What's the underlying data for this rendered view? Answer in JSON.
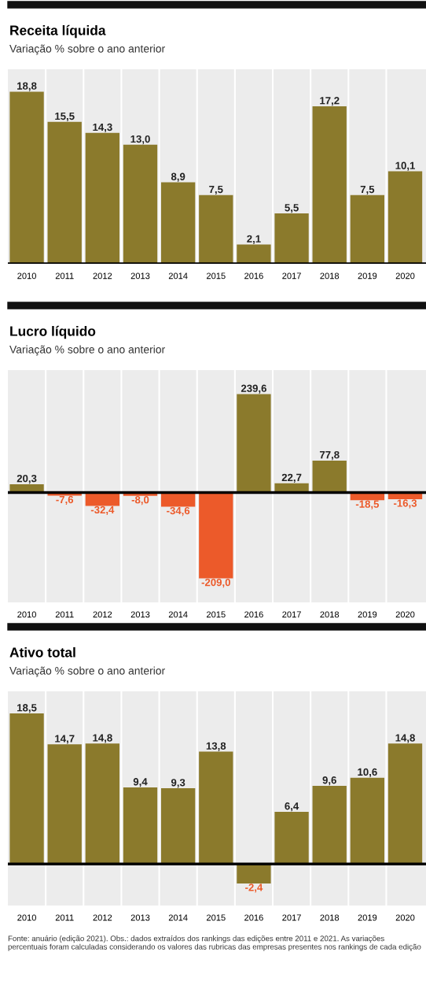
{
  "chart_data": [
    {
      "type": "bar",
      "title": "Receita líquida",
      "subtitle": "Variação % sobre o ano anterior",
      "categories": [
        "2010",
        "2011",
        "2012",
        "2013",
        "2014",
        "2015",
        "2016",
        "2017",
        "2018",
        "2019",
        "2020"
      ],
      "values": [
        18.8,
        15.5,
        14.3,
        13.0,
        8.9,
        7.5,
        2.1,
        5.5,
        17.2,
        7.5,
        10.1
      ],
      "value_labels": [
        "18,8",
        "15,5",
        "14,3",
        "13,0",
        "8,9",
        "7,5",
        "2,1",
        "5,5",
        "17,2",
        "7,5",
        "10,1"
      ],
      "color": "#8b7a2c"
    },
    {
      "type": "bar",
      "title": "Lucro líquido",
      "subtitle": "Variação % sobre o ano anterior",
      "categories": [
        "2010",
        "2011",
        "2012",
        "2013",
        "2014",
        "2015",
        "2016",
        "2017",
        "2018",
        "2019",
        "2020"
      ],
      "values": [
        20.3,
        -7.6,
        -32.4,
        -8.0,
        -34.6,
        -209.0,
        239.6,
        22.7,
        77.8,
        -18.5,
        -16.3
      ],
      "value_labels": [
        "20,3",
        "-7,6",
        "-32,4",
        "-8,0",
        "-34,6",
        "-209,0",
        "239,6",
        "22,7",
        "77,8",
        "-18,5",
        "-16,3"
      ],
      "colors": [
        "#8b7a2c",
        "#ec5a2a",
        "#ec5a2a",
        "#ec5a2a",
        "#ec5a2a",
        "#ec5a2a",
        "#8b7a2c",
        "#8b7a2c",
        "#8b7a2c",
        "#ec5a2a",
        "#ec5a2a"
      ]
    },
    {
      "type": "bar",
      "title": "Ativo total",
      "subtitle": "Variação % sobre o ano anterior",
      "categories": [
        "2010",
        "2011",
        "2012",
        "2013",
        "2014",
        "2015",
        "2016",
        "2017",
        "2018",
        "2019",
        "2020"
      ],
      "values": [
        18.5,
        14.7,
        14.8,
        9.4,
        9.3,
        13.8,
        -2.4,
        6.4,
        9.6,
        10.6,
        14.8
      ],
      "value_labels": [
        "18,5",
        "14,7",
        "14,8",
        "9,4",
        "9,3",
        "13,8",
        "-2,4",
        "6,4",
        "9,6",
        "10,6",
        "14,8"
      ],
      "color": "#8b7a2c",
      "annotations": [
        "Fonte: anuário (edição 2021). Obs.: dados extraídos dos rankings das edições entre 2011 e 2021. As variações percentuais foram calculadas considerando os valores das rubricas das empresas presentes nos rankings de cada edição"
      ]
    }
  ]
}
